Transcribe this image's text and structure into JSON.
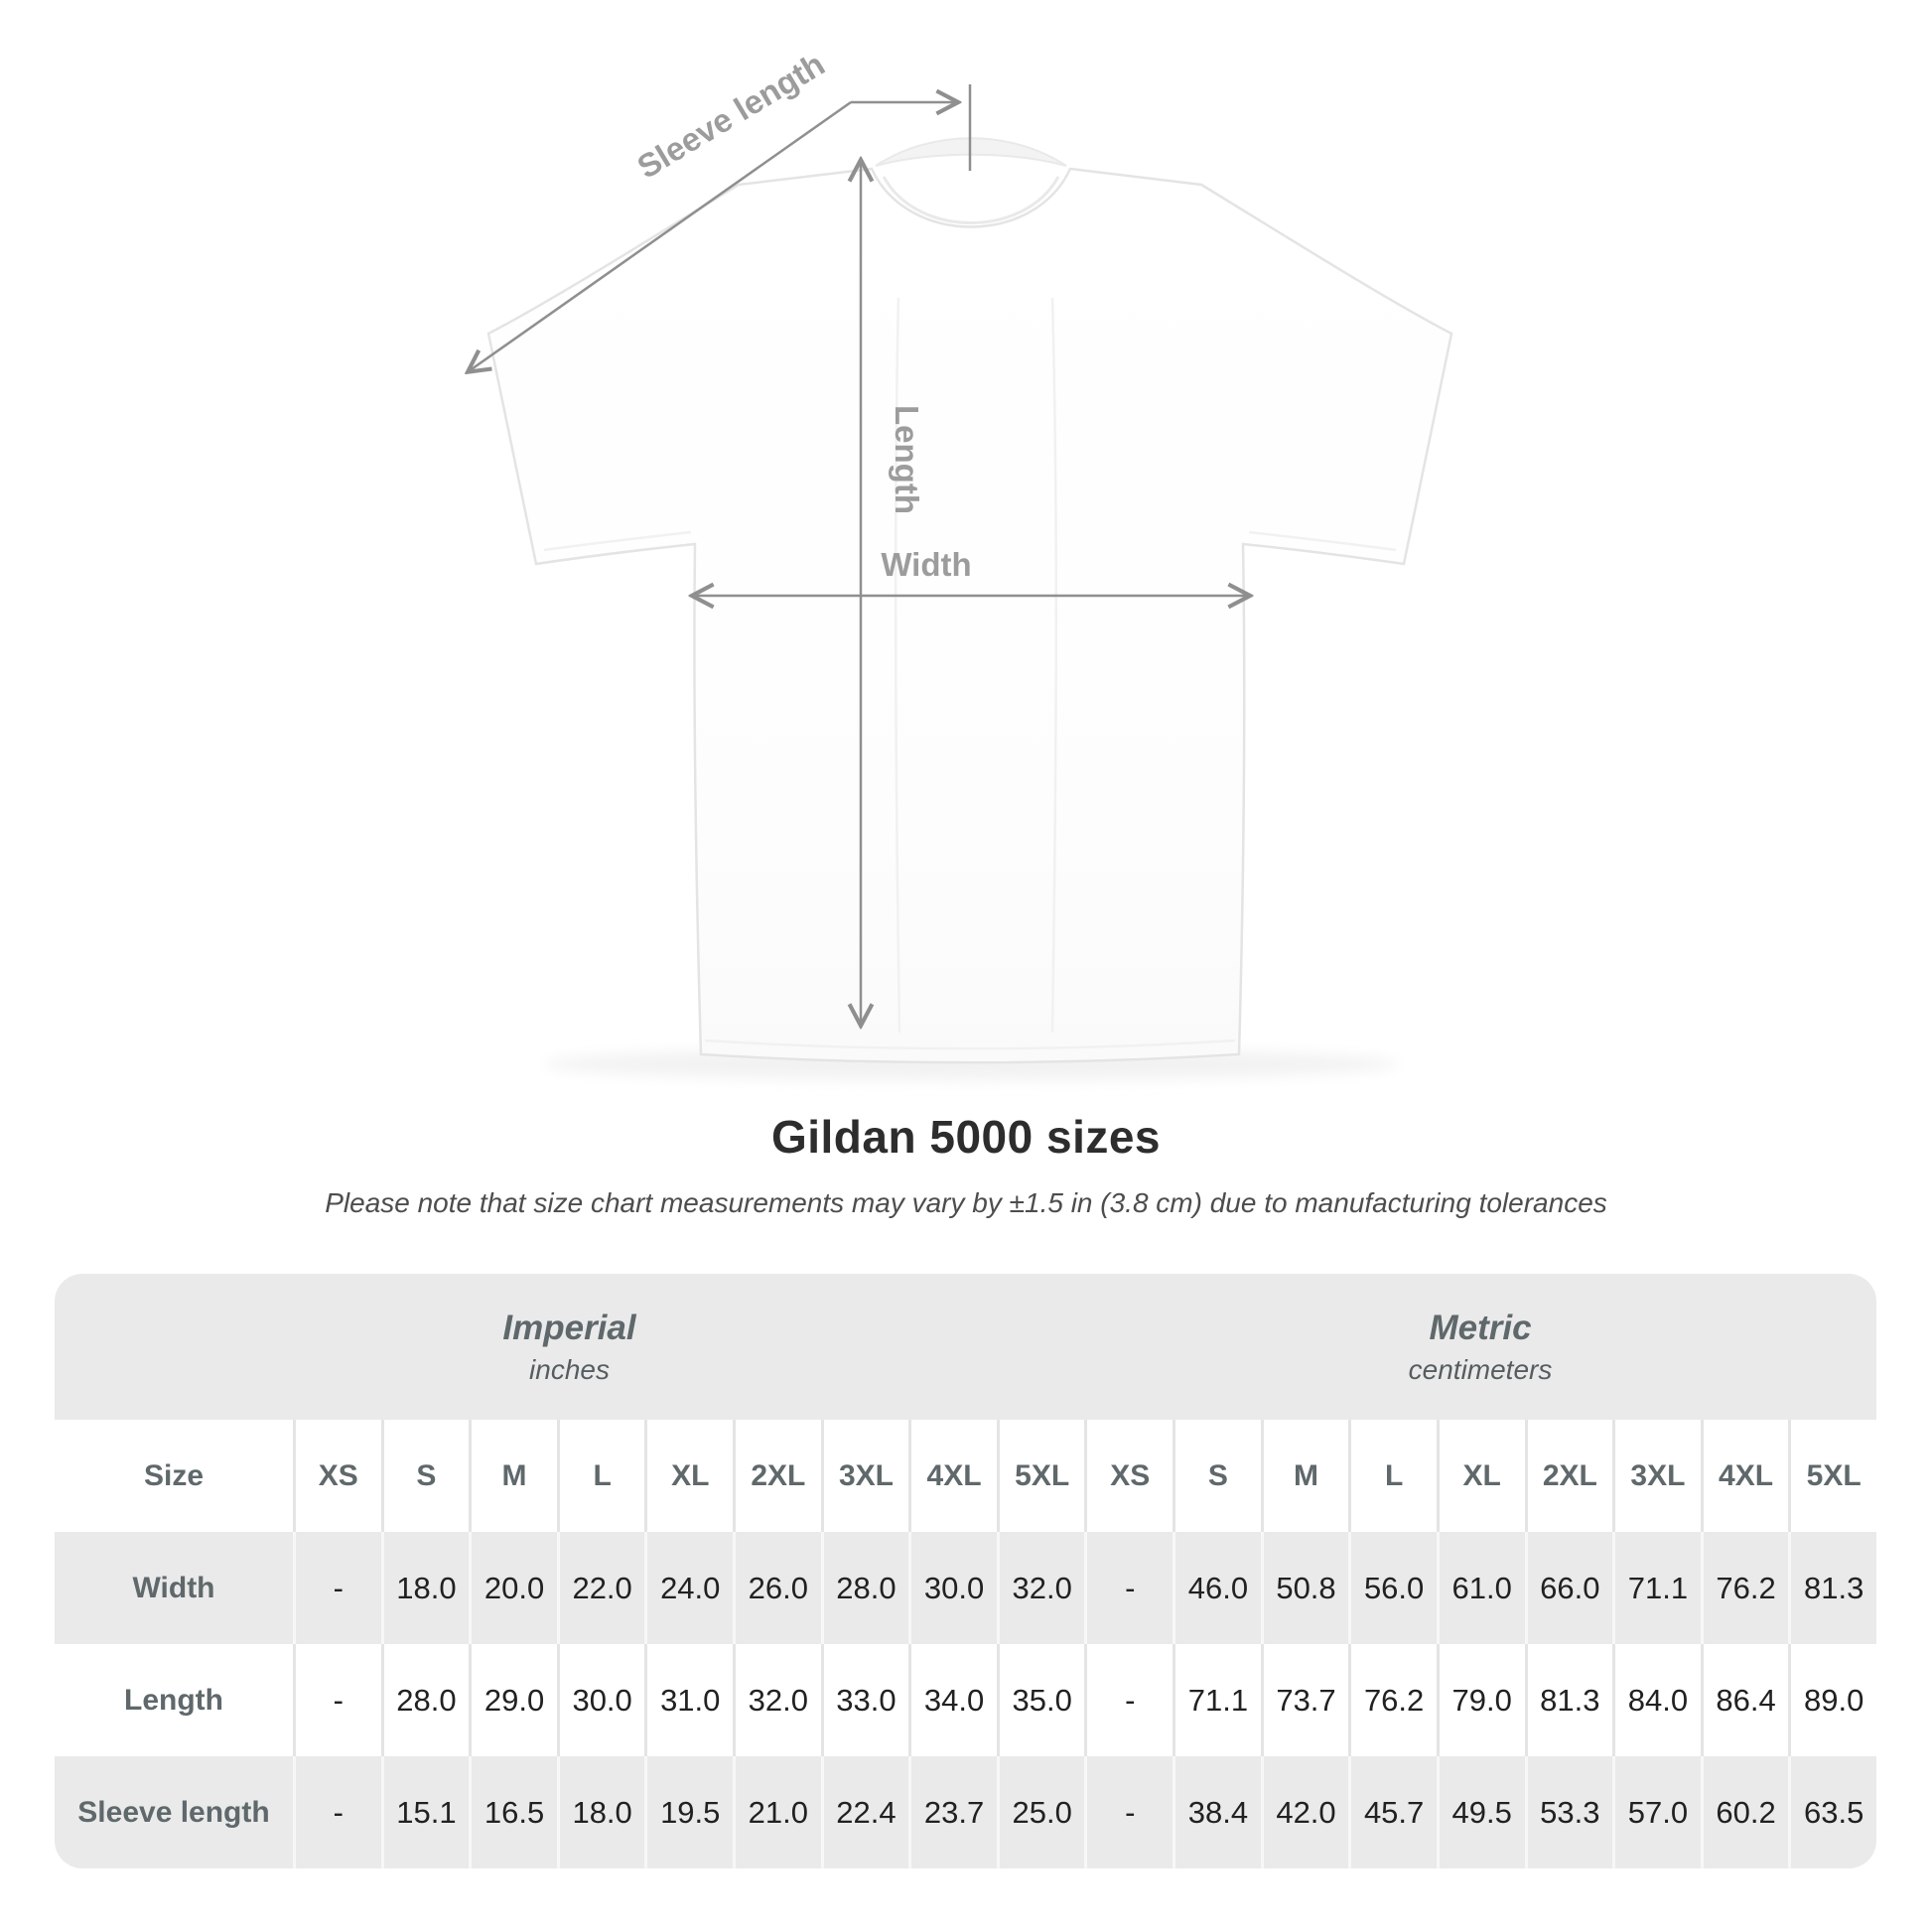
{
  "chart_data": {
    "type": "table",
    "title": "Gildan 5000 sizes",
    "subtitle": "Please note that size chart measurements may vary by ±1.5 in (3.8 cm) due to manufacturing tolerances",
    "unit_groups": [
      {
        "label": "Imperial",
        "units": "inches"
      },
      {
        "label": "Metric",
        "units": "centimeters"
      }
    ],
    "size_column_header": "Size",
    "sizes": [
      "XS",
      "S",
      "M",
      "L",
      "XL",
      "2XL",
      "3XL",
      "4XL",
      "5XL"
    ],
    "rows": [
      {
        "label": "Width",
        "imperial": [
          "-",
          "18.0",
          "20.0",
          "22.0",
          "24.0",
          "26.0",
          "28.0",
          "30.0",
          "32.0"
        ],
        "metric": [
          "-",
          "46.0",
          "50.8",
          "56.0",
          "61.0",
          "66.0",
          "71.1",
          "76.2",
          "81.3"
        ]
      },
      {
        "label": "Length",
        "imperial": [
          "-",
          "28.0",
          "29.0",
          "30.0",
          "31.0",
          "32.0",
          "33.0",
          "34.0",
          "35.0"
        ],
        "metric": [
          "-",
          "71.1",
          "73.7",
          "76.2",
          "79.0",
          "81.3",
          "84.0",
          "86.4",
          "89.0"
        ]
      },
      {
        "label": "Sleeve length",
        "imperial": [
          "-",
          "15.1",
          "16.5",
          "18.0",
          "19.5",
          "21.0",
          "22.4",
          "23.7",
          "25.0"
        ],
        "metric": [
          "-",
          "38.4",
          "42.0",
          "45.7",
          "49.5",
          "53.3",
          "57.0",
          "60.2",
          "63.5"
        ]
      }
    ]
  },
  "diagram": {
    "labels": {
      "sleeve_length": "Sleeve length",
      "length": "Length",
      "width": "Width"
    }
  },
  "colors": {
    "table_band_gray": "#eaeaea",
    "header_text": "#5f686b",
    "value_text": "#212121",
    "annotation_line": "#8f8f8f",
    "annotation_text": "#9c9c9c",
    "title_text": "#2d2d2d"
  }
}
